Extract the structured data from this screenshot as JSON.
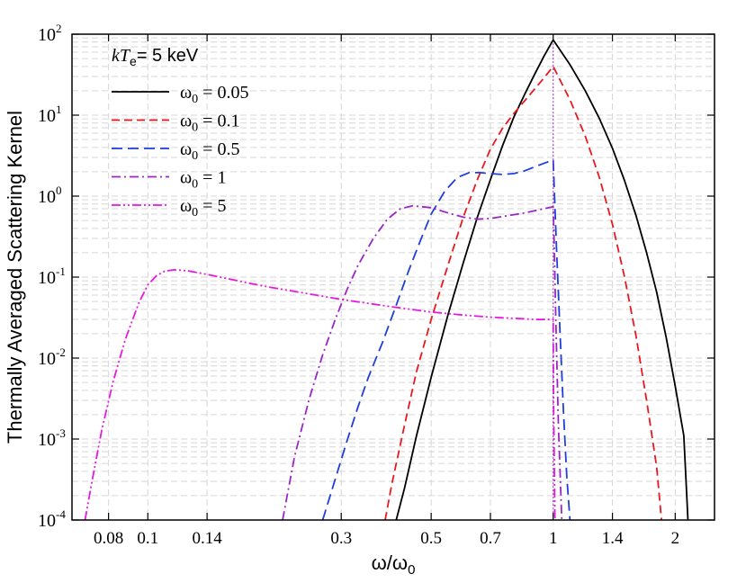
{
  "chart_data": {
    "type": "line",
    "title": "",
    "xlabel": "ω/ω",
    "xlabel_sub": "0",
    "ylabel": "Thermally Averaged Scattering Kernel",
    "xscale": "log",
    "yscale": "log",
    "xlim": [
      0.065,
      2.5
    ],
    "ylim": [
      0.0001,
      100
    ],
    "grid": true,
    "legend_position": "top-left",
    "annotation": {
      "k": "k",
      "T": "T",
      "e": "e",
      "rest": "= 5  keV"
    },
    "x_ticks": [
      {
        "value": 0.08,
        "label": "0.08"
      },
      {
        "value": 0.1,
        "label": "0.1"
      },
      {
        "value": 0.14,
        "label": "0.14"
      },
      {
        "value": 0.3,
        "label": "0.3"
      },
      {
        "value": 0.5,
        "label": "0.5"
      },
      {
        "value": 0.7,
        "label": "0.7"
      },
      {
        "value": 1,
        "label": "1"
      },
      {
        "value": 1.4,
        "label": "1.4"
      },
      {
        "value": 2,
        "label": "2"
      }
    ],
    "y_ticks": [
      {
        "value": 100,
        "base": "10",
        "exp": "2"
      },
      {
        "value": 10,
        "base": "10",
        "exp": "1"
      },
      {
        "value": 1,
        "base": "10",
        "exp": "0"
      },
      {
        "value": 0.1,
        "base": "10",
        "exp": "-1"
      },
      {
        "value": 0.01,
        "base": "10",
        "exp": "-2"
      },
      {
        "value": 0.001,
        "base": "10",
        "exp": "-3"
      },
      {
        "value": 0.0001,
        "base": "10",
        "exp": "-4"
      }
    ],
    "series": [
      {
        "name": "ω0 = 0.05",
        "legend_label": "= 0.05",
        "color": "#000000",
        "dash": "",
        "x": [
          0.41,
          0.43,
          0.46,
          0.5,
          0.55,
          0.6,
          0.65,
          0.7,
          0.75,
          0.8,
          0.85,
          0.9,
          0.95,
          1.0,
          1.1,
          1.2,
          1.3,
          1.4,
          1.5,
          1.6,
          1.7,
          1.8,
          1.9,
          2.0,
          2.1,
          2.15
        ],
        "y": [
          0.0001,
          0.00025,
          0.0011,
          0.0058,
          0.034,
          0.15,
          0.55,
          1.6,
          4.2,
          9.5,
          18,
          32,
          54,
          85,
          42,
          20,
          9.1,
          3.9,
          1.55,
          0.58,
          0.2,
          0.065,
          0.018,
          0.0045,
          0.0011,
          0.0001
        ]
      },
      {
        "name": "ω0 = 0.1",
        "legend_label": "= 0.1",
        "color": "#e8191e",
        "dash": "9,5",
        "x": [
          0.385,
          0.4,
          0.43,
          0.46,
          0.5,
          0.55,
          0.6,
          0.65,
          0.7,
          0.75,
          0.8,
          0.85,
          0.9,
          0.95,
          1.0,
          1.1,
          1.2,
          1.3,
          1.4,
          1.5,
          1.6,
          1.7,
          1.8,
          1.85
        ],
        "y": [
          0.0001,
          0.00028,
          0.0015,
          0.0068,
          0.03,
          0.14,
          0.55,
          1.6,
          3.8,
          6.9,
          10.5,
          15,
          21,
          29,
          40,
          15.5,
          5.5,
          1.7,
          0.45,
          0.1,
          0.019,
          0.003,
          0.00045,
          0.0001
        ]
      },
      {
        "name": "ω0 = 0.5",
        "legend_label": "= 0.5",
        "color": "#1f3fd8",
        "dash": "12,6",
        "x": [
          0.27,
          0.29,
          0.31,
          0.33,
          0.35,
          0.38,
          0.41,
          0.44,
          0.47,
          0.5,
          0.54,
          0.58,
          0.62,
          0.66,
          0.7,
          0.75,
          0.8,
          0.85,
          0.9,
          0.95,
          1.0,
          1.02,
          1.04,
          1.06,
          1.08,
          1.1
        ],
        "y": [
          0.0001,
          0.00032,
          0.00095,
          0.0025,
          0.0058,
          0.016,
          0.045,
          0.12,
          0.28,
          0.6,
          1.15,
          1.7,
          1.95,
          1.95,
          1.9,
          1.85,
          1.9,
          2.05,
          2.3,
          2.55,
          2.8,
          0.2,
          0.02,
          0.0022,
          0.00035,
          0.0001
        ]
      },
      {
        "name": "ω0 = 1",
        "legend_label": "= 1",
        "color": "#9a26c7",
        "dash": "10,4,2,4",
        "x": [
          0.215,
          0.23,
          0.25,
          0.27,
          0.29,
          0.31,
          0.33,
          0.36,
          0.39,
          0.42,
          0.45,
          0.5,
          0.55,
          0.6,
          0.65,
          0.7,
          0.75,
          0.8,
          0.85,
          0.9,
          0.95,
          1.0,
          1.005,
          1.015,
          1.03,
          1.05
        ],
        "y": [
          0.0001,
          0.0006,
          0.0031,
          0.011,
          0.03,
          0.07,
          0.14,
          0.3,
          0.52,
          0.7,
          0.76,
          0.72,
          0.62,
          0.55,
          0.52,
          0.53,
          0.56,
          0.59,
          0.62,
          0.66,
          0.7,
          0.74,
          0.3,
          0.03,
          0.0015,
          0.0001
        ]
      },
      {
        "name": "ω0 = 5",
        "legend_label": "= 5",
        "color": "#e61adf",
        "dash": "10,3,2,3,2,3",
        "x": [
          0.07,
          0.073,
          0.077,
          0.082,
          0.088,
          0.095,
          0.1,
          0.105,
          0.11,
          0.116,
          0.125,
          0.14,
          0.16,
          0.18,
          0.2,
          0.25,
          0.3,
          0.4,
          0.5,
          0.6,
          0.7,
          0.8,
          0.9,
          1.0,
          1.002,
          1.01
        ],
        "y": [
          0.0001,
          0.00032,
          0.0013,
          0.005,
          0.017,
          0.048,
          0.08,
          0.104,
          0.118,
          0.123,
          0.12,
          0.108,
          0.094,
          0.083,
          0.075,
          0.062,
          0.053,
          0.043,
          0.037,
          0.034,
          0.032,
          0.031,
          0.03,
          0.03,
          0.003,
          0.0001
        ]
      }
    ]
  }
}
